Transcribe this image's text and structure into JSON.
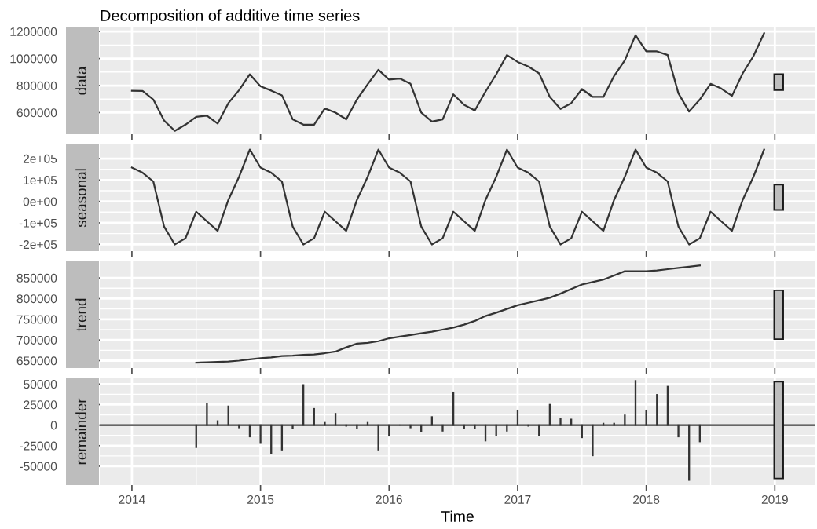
{
  "chart_data": [
    {
      "type": "line",
      "title": "Decomposition of additive time series",
      "ylabel": "data",
      "grid": true,
      "tick_labels": "y",
      "x": [
        "2014-01",
        "2014-02",
        "2014-03",
        "2014-04",
        "2014-05",
        "2014-06",
        "2014-07",
        "2014-08",
        "2014-09",
        "2014-10",
        "2014-11",
        "2014-12",
        "2015-01",
        "2015-02",
        "2015-03",
        "2015-04",
        "2015-05",
        "2015-06",
        "2015-07",
        "2015-08",
        "2015-09",
        "2015-10",
        "2015-11",
        "2015-12",
        "2016-01",
        "2016-02",
        "2016-03",
        "2016-04",
        "2016-05",
        "2016-06",
        "2016-07",
        "2016-08",
        "2016-09",
        "2016-10",
        "2016-11",
        "2016-12",
        "2017-01",
        "2017-02",
        "2017-03",
        "2017-04",
        "2017-05",
        "2017-06",
        "2017-07",
        "2017-08",
        "2017-09",
        "2017-10",
        "2017-11",
        "2017-12",
        "2018-01",
        "2018-02",
        "2018-03",
        "2018-04",
        "2018-05",
        "2018-06",
        "2018-07",
        "2018-08",
        "2018-09",
        "2018-10",
        "2018-11",
        "2018-12"
      ],
      "xlim": [
        "2013-10",
        "2019-04-25"
      ],
      "xticks": [
        "2014",
        "2015",
        "2016",
        "2017",
        "2018",
        "2019"
      ],
      "ylim": [
        440000,
        1230000
      ],
      "yticks": [
        600000,
        800000,
        1000000,
        1200000
      ],
      "series": [
        {
          "color": "#333333",
          "values": [
            762000,
            760000,
            697000,
            542000,
            465000,
            511000,
            569000,
            577000,
            519000,
            670000,
            766000,
            883000,
            794000,
            763000,
            728000,
            550000,
            511000,
            511000,
            631000,
            600000,
            550000,
            697000,
            809000,
            917000,
            844000,
            852000,
            813000,
            600000,
            534000,
            550000,
            735000,
            658000,
            616000,
            755000,
            883000,
            1026000,
            975000,
            941000,
            890000,
            716000,
            627000,
            670000,
            774000,
            716000,
            716000,
            871000,
            987000,
            1173000,
            1053000,
            1053000,
            1026000,
            743000,
            608000,
            697000,
            813000,
            778000,
            724000,
            890000,
            1018000,
            1188000
          ]
        },
        {
          "type": "bar",
          "color": "#bebebe",
          "x": [
            "2019-01-12"
          ],
          "base": [
            766000
          ],
          "values": [
            118000
          ]
        }
      ]
    },
    {
      "type": "line",
      "ylabel": "seasonal",
      "grid": true,
      "tick_labels": "y",
      "x": [
        "2014-01",
        "2014-02",
        "2014-03",
        "2014-04",
        "2014-05",
        "2014-06",
        "2014-07",
        "2014-08",
        "2014-09",
        "2014-10",
        "2014-11",
        "2014-12",
        "2015-01",
        "2015-02",
        "2015-03",
        "2015-04",
        "2015-05",
        "2015-06",
        "2015-07",
        "2015-08",
        "2015-09",
        "2015-10",
        "2015-11",
        "2015-12",
        "2016-01",
        "2016-02",
        "2016-03",
        "2016-04",
        "2016-05",
        "2016-06",
        "2016-07",
        "2016-08",
        "2016-09",
        "2016-10",
        "2016-11",
        "2016-12",
        "2017-01",
        "2017-02",
        "2017-03",
        "2017-04",
        "2017-05",
        "2017-06",
        "2017-07",
        "2017-08",
        "2017-09",
        "2017-10",
        "2017-11",
        "2017-12",
        "2018-01",
        "2018-02",
        "2018-03",
        "2018-04",
        "2018-05",
        "2018-06",
        "2018-07",
        "2018-08",
        "2018-09",
        "2018-10",
        "2018-11",
        "2018-12"
      ],
      "xlim": [
        "2013-10",
        "2019-04-25"
      ],
      "xticks": [
        "2014",
        "2015",
        "2016",
        "2017",
        "2018",
        "2019"
      ],
      "ylim": [
        -232000,
        266000
      ],
      "yticks": [
        {
          "value": -200000,
          "label": "-2e+05"
        },
        {
          "value": -100000,
          "label": "-1e+05"
        },
        {
          "value": 0,
          "label": "0e+00"
        },
        {
          "value": 100000,
          "label": "1e+05"
        },
        {
          "value": 200000,
          "label": "2e+05"
        }
      ],
      "series": [
        {
          "color": "#333333",
          "values": [
            158000,
            134000,
            93000,
            -117000,
            -201000,
            -172000,
            -48000,
            -93000,
            -137000,
            7000,
            115000,
            242000,
            158000,
            134000,
            93000,
            -117000,
            -201000,
            -172000,
            -48000,
            -93000,
            -137000,
            7000,
            115000,
            242000,
            158000,
            134000,
            93000,
            -117000,
            -201000,
            -172000,
            -48000,
            -93000,
            -137000,
            7000,
            115000,
            242000,
            158000,
            134000,
            93000,
            -117000,
            -201000,
            -172000,
            -48000,
            -93000,
            -137000,
            7000,
            115000,
            242000,
            158000,
            134000,
            93000,
            -117000,
            -201000,
            -172000,
            -48000,
            -93000,
            -137000,
            7000,
            115000,
            242000
          ]
        },
        {
          "type": "bar",
          "color": "#bebebe",
          "x": [
            "2019-01-12"
          ],
          "base": [
            -40000
          ],
          "values": [
            118000
          ]
        }
      ]
    },
    {
      "type": "line",
      "ylabel": "trend",
      "grid": true,
      "tick_labels": "y",
      "x": [
        "2014-07",
        "2014-08",
        "2014-09",
        "2014-10",
        "2014-11",
        "2014-12",
        "2015-01",
        "2015-02",
        "2015-03",
        "2015-04",
        "2015-05",
        "2015-06",
        "2015-07",
        "2015-08",
        "2015-09",
        "2015-10",
        "2015-11",
        "2015-12",
        "2016-01",
        "2016-02",
        "2016-03",
        "2016-04",
        "2016-05",
        "2016-06",
        "2016-07",
        "2016-08",
        "2016-09",
        "2016-10",
        "2016-11",
        "2016-12",
        "2017-01",
        "2017-02",
        "2017-03",
        "2017-04",
        "2017-05",
        "2017-06",
        "2017-07",
        "2017-08",
        "2017-09",
        "2017-10",
        "2017-11",
        "2017-12",
        "2018-01",
        "2018-02",
        "2018-03",
        "2018-04",
        "2018-05",
        "2018-06"
      ],
      "xlim": [
        "2013-10",
        "2019-04-25"
      ],
      "xticks": [
        "2014",
        "2015",
        "2016",
        "2017",
        "2018",
        "2019"
      ],
      "ylim": [
        632000,
        890000
      ],
      "yticks": [
        650000,
        700000,
        750000,
        800000,
        850000
      ],
      "series": [
        {
          "color": "#333333",
          "values": [
            645000,
            646000,
            647000,
            648000,
            650000,
            653000,
            656000,
            658000,
            661000,
            662000,
            664000,
            665000,
            668000,
            672000,
            682000,
            691000,
            693000,
            697000,
            704000,
            708000,
            712000,
            716000,
            720000,
            725000,
            730000,
            737000,
            746000,
            758000,
            766000,
            775000,
            784000,
            790000,
            796000,
            802000,
            812000,
            823000,
            834000,
            840000,
            846000,
            856000,
            866000,
            866000,
            866000,
            868000,
            871000,
            874000,
            877000,
            880000
          ]
        },
        {
          "type": "bar",
          "color": "#bebebe",
          "x": [
            "2019-01-12"
          ],
          "base": [
            702000
          ],
          "values": [
            118000
          ]
        }
      ]
    },
    {
      "type": "bar",
      "ylabel": "remainder",
      "xlabel": "Time",
      "grid": true,
      "x": [
        "2014-07",
        "2014-08",
        "2014-09",
        "2014-10",
        "2014-11",
        "2014-12",
        "2015-01",
        "2015-02",
        "2015-03",
        "2015-04",
        "2015-05",
        "2015-06",
        "2015-07",
        "2015-08",
        "2015-09",
        "2015-10",
        "2015-11",
        "2015-12",
        "2016-01",
        "2016-02",
        "2016-03",
        "2016-04",
        "2016-05",
        "2016-06",
        "2016-07",
        "2016-08",
        "2016-09",
        "2016-10",
        "2016-11",
        "2016-12",
        "2017-01",
        "2017-02",
        "2017-03",
        "2017-04",
        "2017-05",
        "2017-06",
        "2017-07",
        "2017-08",
        "2017-09",
        "2017-10",
        "2017-11",
        "2017-12",
        "2018-01",
        "2018-02",
        "2018-03",
        "2018-04",
        "2018-05",
        "2018-06"
      ],
      "xlim": [
        "2013-10",
        "2019-04-25"
      ],
      "xticks": [
        "2014",
        "2015",
        "2016",
        "2017",
        "2018",
        "2019"
      ],
      "ylim": [
        -73000,
        57000
      ],
      "yticks": [
        -50000,
        -25000,
        0,
        25000,
        50000
      ],
      "ref_lines": [
        {
          "axis": "y",
          "value": 0,
          "color": "#333333"
        }
      ],
      "series": [
        {
          "color": "#333333",
          "values": [
            -27000,
            26000,
            5000,
            23000,
            -3000,
            -14000,
            -22000,
            -34000,
            -30000,
            -4000,
            49000,
            20000,
            3000,
            14000,
            -1000,
            -4000,
            3000,
            -30000,
            -13000,
            0,
            -3000,
            -8000,
            10000,
            -7000,
            40000,
            -4000,
            -4000,
            -19000,
            -12000,
            -7000,
            18000,
            -1000,
            -12000,
            25000,
            8000,
            7000,
            -15000,
            -37000,
            2000,
            2000,
            12000,
            54000,
            18000,
            37000,
            47000,
            -14000,
            -67000,
            -20000
          ]
        },
        {
          "type": "bar",
          "color": "#bebebe",
          "x": [
            "2019-01-12"
          ],
          "base": [
            -65000
          ],
          "values": [
            118000
          ]
        }
      ]
    }
  ]
}
